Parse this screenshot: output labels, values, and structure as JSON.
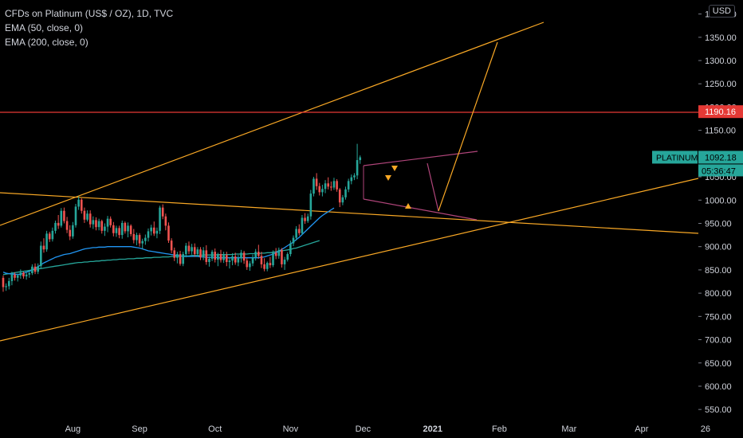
{
  "legend": {
    "symbol": "CFDs on Platinum (US$ / OZ), 1D, TVC",
    "ema50": "EMA (50, close, 0)",
    "ema200": "EMA (200, close, 0)"
  },
  "currency": "USD",
  "colors": {
    "up": "#26a69a",
    "down": "#ef5350",
    "ema50": "#2196f3",
    "ema200": "#26a69a",
    "trendline": "#f9a825",
    "resistance": "#e53935",
    "pattern": "#b0457a",
    "price_label": "#26a69a",
    "level_label": "#e53935"
  },
  "chart_data": {
    "type": "candlestick",
    "ylim": [
      530,
      1390
    ],
    "y_ticks": [
      550,
      600,
      650,
      700,
      750,
      800,
      850,
      900,
      950,
      1000,
      1050,
      1100,
      1150,
      1200,
      1250,
      1300,
      1350,
      1400
    ],
    "y_tick_labels": [
      "550.00",
      "600.00",
      "650.00",
      "700.00",
      "750.00",
      "800.00",
      "850.00",
      "900.00",
      "950.00",
      "1000.00",
      "1050.00",
      "1100.00",
      "1150.00",
      "1200.00",
      "1250.00",
      "1300.00",
      "1350.00",
      "1400.00"
    ],
    "x_tick_labels": [
      "Aug",
      "Sep",
      "Oct",
      "Nov",
      "Dec",
      "2021",
      "Feb",
      "Mar",
      "Apr",
      "26"
    ],
    "x_tick_index": [
      24,
      47,
      73,
      99,
      124,
      148,
      171,
      195,
      220,
      242
    ],
    "candles": [
      [
        833,
        838,
        803,
        813
      ],
      [
        813,
        821,
        805,
        815
      ],
      [
        815,
        833,
        808,
        826
      ],
      [
        826,
        846,
        817,
        840
      ],
      [
        840,
        845,
        827,
        833
      ],
      [
        833,
        842,
        825,
        838
      ],
      [
        838,
        851,
        831,
        844
      ],
      [
        844,
        846,
        831,
        836
      ],
      [
        836,
        846,
        829,
        840
      ],
      [
        840,
        849,
        833,
        843
      ],
      [
        843,
        862,
        839,
        857
      ],
      [
        857,
        864,
        841,
        846
      ],
      [
        846,
        864,
        841,
        858
      ],
      [
        858,
        911,
        853,
        902
      ],
      [
        902,
        918,
        887,
        894
      ],
      [
        894,
        934,
        889,
        928
      ],
      [
        928,
        932,
        910,
        916
      ],
      [
        916,
        941,
        911,
        934
      ],
      [
        934,
        956,
        928,
        951
      ],
      [
        951,
        968,
        938,
        945
      ],
      [
        945,
        983,
        941,
        977
      ],
      [
        977,
        984,
        950,
        955
      ],
      [
        955,
        964,
        929,
        936
      ],
      [
        936,
        946,
        914,
        922
      ],
      [
        922,
        953,
        917,
        946
      ],
      [
        946,
        992,
        941,
        986
      ],
      [
        986,
        1008,
        979,
        1001
      ],
      [
        1001,
        1004,
        971,
        977
      ],
      [
        977,
        984,
        951,
        958
      ],
      [
        958,
        978,
        954,
        971
      ],
      [
        971,
        978,
        941,
        948
      ],
      [
        948,
        965,
        938,
        957
      ],
      [
        957,
        963,
        935,
        942
      ],
      [
        942,
        960,
        935,
        955
      ],
      [
        955,
        958,
        928,
        934
      ],
      [
        934,
        950,
        923,
        943
      ],
      [
        943,
        966,
        931,
        960
      ],
      [
        960,
        965,
        941,
        946
      ],
      [
        946,
        953,
        922,
        929
      ],
      [
        929,
        945,
        921,
        940
      ],
      [
        940,
        945,
        918,
        925
      ],
      [
        925,
        956,
        917,
        951
      ],
      [
        951,
        954,
        928,
        933
      ],
      [
        933,
        952,
        920,
        945
      ],
      [
        945,
        948,
        922,
        927
      ],
      [
        927,
        938,
        907,
        914
      ],
      [
        914,
        930,
        903,
        925
      ],
      [
        925,
        929,
        900,
        907
      ],
      [
        907,
        917,
        895,
        912
      ],
      [
        912,
        926,
        904,
        919
      ],
      [
        919,
        939,
        911,
        933
      ],
      [
        933,
        947,
        924,
        941
      ],
      [
        941,
        954,
        923,
        928
      ],
      [
        928,
        941,
        918,
        934
      ],
      [
        934,
        988,
        927,
        984
      ],
      [
        984,
        991,
        959,
        965
      ],
      [
        965,
        971,
        935,
        945
      ],
      [
        945,
        952,
        908,
        913
      ],
      [
        913,
        918,
        886,
        892
      ],
      [
        892,
        898,
        869,
        876
      ],
      [
        876,
        889,
        864,
        884
      ],
      [
        884,
        891,
        859,
        863
      ],
      [
        863,
        889,
        858,
        884
      ],
      [
        884,
        908,
        877,
        902
      ],
      [
        902,
        911,
        884,
        890
      ],
      [
        890,
        906,
        883,
        899
      ],
      [
        899,
        907,
        878,
        884
      ],
      [
        884,
        899,
        879,
        894
      ],
      [
        894,
        899,
        871,
        877
      ],
      [
        877,
        899,
        871,
        892
      ],
      [
        892,
        903,
        861,
        867
      ],
      [
        867,
        879,
        857,
        874
      ],
      [
        874,
        893,
        869,
        889
      ],
      [
        889,
        896,
        866,
        872
      ],
      [
        872,
        887,
        858,
        884
      ],
      [
        884,
        893,
        866,
        871
      ],
      [
        871,
        889,
        865,
        882
      ],
      [
        882,
        889,
        858,
        867
      ],
      [
        867,
        876,
        853,
        870
      ],
      [
        870,
        886,
        860,
        879
      ],
      [
        879,
        887,
        861,
        866
      ],
      [
        866,
        882,
        858,
        875
      ],
      [
        875,
        893,
        866,
        887
      ],
      [
        887,
        891,
        863,
        870
      ],
      [
        870,
        875,
        850,
        856
      ],
      [
        856,
        869,
        848,
        864
      ],
      [
        864,
        883,
        858,
        877
      ],
      [
        877,
        895,
        870,
        889
      ],
      [
        889,
        904,
        874,
        880
      ],
      [
        880,
        889,
        854,
        862
      ],
      [
        862,
        875,
        847,
        852
      ],
      [
        852,
        868,
        847,
        865
      ],
      [
        865,
        878,
        854,
        860
      ],
      [
        860,
        892,
        856,
        887
      ],
      [
        887,
        897,
        873,
        880
      ],
      [
        880,
        898,
        874,
        893
      ],
      [
        893,
        897,
        855,
        862
      ],
      [
        862,
        878,
        850,
        872
      ],
      [
        872,
        888,
        868,
        884
      ],
      [
        884,
        913,
        879,
        907
      ],
      [
        907,
        924,
        901,
        919
      ],
      [
        919,
        944,
        913,
        938
      ],
      [
        938,
        948,
        924,
        929
      ],
      [
        929,
        968,
        925,
        962
      ],
      [
        962,
        972,
        949,
        955
      ],
      [
        955,
        971,
        951,
        965
      ],
      [
        965,
        1022,
        958,
        1014
      ],
      [
        1014,
        1050,
        1008,
        1046
      ],
      [
        1046,
        1058,
        1022,
        1030
      ],
      [
        1030,
        1037,
        1010,
        1017
      ],
      [
        1017,
        1033,
        1008,
        1024
      ],
      [
        1024,
        1043,
        1015,
        1036
      ],
      [
        1036,
        1049,
        1023,
        1029
      ],
      [
        1029,
        1040,
        1020,
        1027
      ],
      [
        1027,
        1048,
        1022,
        1041
      ],
      [
        1041,
        1045,
        1018,
        1023
      ],
      [
        1023,
        1026,
        985,
        995
      ],
      [
        995,
        1011,
        989,
        1006
      ],
      [
        1006,
        1029,
        1001,
        1023
      ],
      [
        1023,
        1046,
        1017,
        1041
      ],
      [
        1041,
        1055,
        1034,
        1049
      ],
      [
        1049,
        1058,
        1043,
        1053
      ],
      [
        1053,
        1121,
        1045,
        1086
      ],
      [
        1086,
        1096,
        1078,
        1092
      ]
    ],
    "ema50": [
      845,
      843,
      842,
      841,
      841,
      840,
      841,
      843,
      845,
      847,
      850,
      853,
      857,
      861,
      865,
      868,
      871,
      874,
      877,
      879,
      881,
      883,
      884,
      885,
      887,
      889,
      891,
      893,
      895,
      896,
      897,
      898,
      898,
      899,
      899,
      899,
      900,
      900,
      900,
      900,
      900,
      900,
      900,
      900,
      900,
      899,
      898,
      897,
      895,
      893,
      891,
      890,
      889,
      888,
      887,
      886,
      885,
      884,
      883,
      882,
      881,
      880,
      879,
      879,
      879,
      879,
      879,
      879,
      878,
      878,
      877,
      877,
      877,
      877,
      876,
      876,
      876,
      876,
      876,
      876,
      876,
      876,
      876,
      876,
      876,
      876,
      876,
      876,
      876,
      877,
      878,
      880,
      882,
      884,
      887,
      890,
      894,
      898,
      902,
      906,
      910,
      915,
      920,
      926,
      932,
      938,
      944,
      950,
      956,
      962,
      967,
      971,
      975,
      979,
      983
    ],
    "ema200": [
      840,
      841,
      842,
      843,
      844,
      845,
      846,
      847,
      848,
      849,
      850,
      851,
      852,
      853,
      854,
      855,
      856,
      857,
      858,
      859,
      860,
      861,
      862,
      863,
      864,
      865,
      866,
      866,
      867,
      867,
      868,
      868,
      869,
      869,
      870,
      870,
      871,
      871,
      872,
      872,
      873,
      873,
      873,
      874,
      874,
      874,
      875,
      875,
      875,
      876,
      876,
      876,
      877,
      877,
      877,
      878,
      878,
      878,
      879,
      879,
      879,
      880,
      880,
      880,
      880,
      881,
      881,
      881,
      881,
      882,
      882,
      882,
      882,
      882,
      883,
      883,
      883,
      883,
      883,
      883,
      884,
      884,
      884,
      884,
      884,
      885,
      885,
      885,
      885,
      886,
      886,
      887,
      887,
      888,
      889,
      890,
      891,
      892,
      893,
      894,
      896,
      897,
      899,
      901,
      903,
      905,
      907,
      909,
      911,
      913
    ],
    "current_price_label": "PLATINUM",
    "current_price": "1092.18",
    "countdown": "05:36:47",
    "resistance_level": 1190.16,
    "resistance_label": "1190.16"
  }
}
